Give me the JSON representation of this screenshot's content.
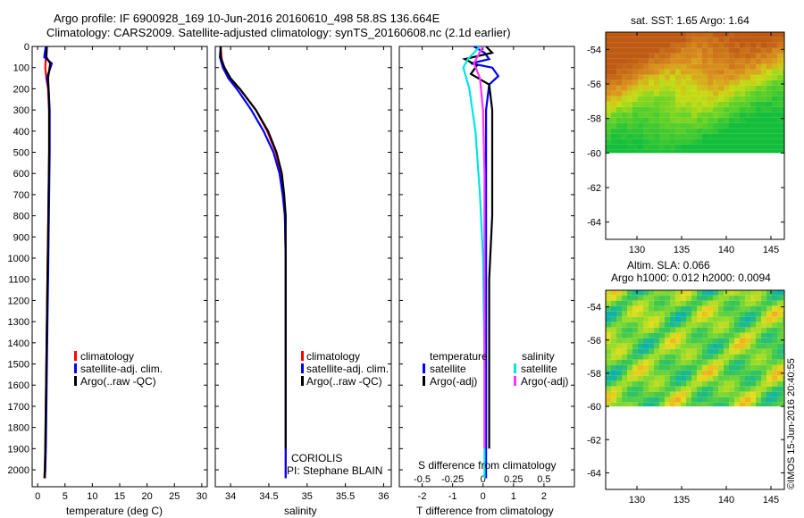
{
  "header": {
    "line1": "Argo profile: IF 6900928_169 10-Jun-2016 20160610_498 58.8S 136.664E",
    "line2": "Climatology: CARS2009. Satellite-adjusted climatology: synTS_20160608.nc (2.1d earlier)"
  },
  "colors": {
    "climatology": "#ff0000",
    "satellite": "#0000ff",
    "argo": "#000000",
    "sal_sat": "#00e5e5",
    "sal_argo": "#ff33ff"
  },
  "panels": {
    "temperature": {
      "xlabel": "temperature (deg C)",
      "legend": [
        "climatology",
        "satellite-adj. clim.",
        "Argo(..raw -QC)"
      ]
    },
    "salinity": {
      "xlabel": "salinity",
      "legend": [
        "climatology",
        "satellite-adj. clim.",
        "Argo(..raw -QC)"
      ],
      "note1": "CORIOLIS",
      "note2": "PI: Stephane BLAIN"
    },
    "difference": {
      "xlabel": "T difference from climatology",
      "toplabel": "S difference from climatology",
      "legend_t_head": "temperature",
      "legend_s_head": "salinity",
      "legend_t": [
        "satellite",
        "Argo(-adj)"
      ],
      "legend_s": [
        "satellite",
        "Argo(-adj)"
      ]
    },
    "sst_map": {
      "title": "sat. SST: 1.65 Argo: 1.64"
    },
    "sla_map": {
      "title1": "Altim. SLA: 0.066",
      "title2": "Argo h1000: 0.012 h2000: 0.0094"
    }
  },
  "stamp": "©IMOS 15-Jun-2016 20:40:55",
  "chart_data": [
    {
      "type": "line",
      "name": "temperature-profile",
      "xlabel": "temperature (deg C)",
      "ylabel": "",
      "xlim": [
        -1,
        31
      ],
      "ylim": [
        2080,
        0
      ],
      "xticks": [
        0,
        5,
        10,
        15,
        20,
        25,
        30
      ],
      "yticks": [
        0,
        100,
        200,
        300,
        400,
        500,
        600,
        700,
        800,
        900,
        1000,
        1100,
        1200,
        1300,
        1400,
        1500,
        1600,
        1700,
        1800,
        1900,
        2000
      ],
      "series": [
        {
          "name": "climatology",
          "x": [
            1.6,
            1.5,
            1.4,
            1.6,
            1.9,
            2.1,
            2.1,
            2.0,
            1.9,
            1.8,
            1.7,
            1.6,
            1.5,
            1.4,
            1.3,
            1.2
          ],
          "y": [
            0,
            50,
            100,
            150,
            200,
            300,
            500,
            700,
            900,
            1100,
            1300,
            1500,
            1700,
            1900,
            2000,
            2040
          ]
        },
        {
          "name": "satellite-adj. clim.",
          "x": [
            1.5,
            1.2,
            2.6,
            1.7,
            2.0,
            2.2,
            2.2,
            2.1,
            2.0,
            1.9,
            1.8,
            1.7,
            1.6,
            1.5,
            1.4,
            1.3
          ],
          "y": [
            0,
            50,
            80,
            150,
            200,
            300,
            500,
            700,
            900,
            1100,
            1300,
            1500,
            1700,
            1900,
            2000,
            2040
          ]
        },
        {
          "name": "Argo(..raw -QC)",
          "x": [
            1.7,
            1.6,
            2.3,
            1.9,
            2.0,
            2.1,
            2.1,
            2.0,
            1.9,
            1.8,
            1.7,
            1.6,
            1.5,
            1.4,
            1.3
          ],
          "y": [
            0,
            50,
            80,
            150,
            200,
            300,
            500,
            700,
            900,
            1100,
            1300,
            1500,
            1700,
            1900,
            2040
          ]
        }
      ]
    },
    {
      "type": "line",
      "name": "salinity-profile",
      "xlabel": "salinity",
      "ylabel": "",
      "xlim": [
        33.8,
        36.1
      ],
      "ylim": [
        2080,
        0
      ],
      "xticks": [
        34,
        34.5,
        35,
        35.5,
        36
      ],
      "xticklabels": [
        "34",
        "34.5",
        "35",
        "35.5",
        "36"
      ],
      "series": [
        {
          "name": "climatology",
          "x": [
            33.87,
            33.88,
            33.9,
            33.98,
            34.12,
            34.33,
            34.48,
            34.59,
            34.66,
            34.69,
            34.71,
            34.72,
            34.72,
            34.72,
            34.72
          ],
          "y": [
            0,
            50,
            100,
            150,
            200,
            300,
            400,
            500,
            600,
            700,
            800,
            1000,
            1300,
            1700,
            2040
          ]
        },
        {
          "name": "satellite-adj. clim.",
          "x": [
            33.87,
            33.86,
            33.9,
            33.97,
            34.08,
            34.27,
            34.43,
            34.56,
            34.64,
            34.68,
            34.71,
            34.72,
            34.72,
            34.72,
            34.72
          ],
          "y": [
            0,
            50,
            100,
            150,
            200,
            300,
            400,
            500,
            600,
            700,
            800,
            1000,
            1300,
            1700,
            2040
          ]
        },
        {
          "name": "Argo(..raw -QC)",
          "x": [
            33.87,
            33.87,
            33.92,
            34.0,
            34.12,
            34.33,
            34.49,
            34.6,
            34.67,
            34.7,
            34.72,
            34.72,
            34.72,
            34.72
          ],
          "y": [
            0,
            50,
            100,
            150,
            200,
            300,
            400,
            500,
            600,
            700,
            800,
            1000,
            1400,
            1900
          ]
        }
      ]
    },
    {
      "type": "line",
      "name": "difference-profile",
      "xlabel": "T difference from climatology",
      "x2label": "S difference from climatology",
      "xlim": [
        -2.75,
        3.0
      ],
      "ylim": [
        2080,
        0
      ],
      "xticks": [
        -2,
        -1,
        0,
        1,
        2
      ],
      "x2ticks": [
        -0.5,
        -0.25,
        0,
        0.25,
        0.5
      ],
      "series": [
        {
          "name": "temperature satellite",
          "x": [
            -0.3,
            0.05,
            0.2,
            -0.4,
            0.3,
            0.5,
            0.2,
            0.1,
            0.1,
            0.1,
            0.1,
            0.1,
            0.1,
            0.1
          ],
          "y": [
            0,
            30,
            60,
            80,
            100,
            140,
            180,
            300,
            500,
            800,
            1100,
            1400,
            1700,
            2040
          ]
        },
        {
          "name": "temperature Argo(-adj)",
          "x": [
            0.1,
            0.3,
            -0.6,
            -0.2,
            -0.4,
            0.2,
            0.3,
            0.3,
            0.3,
            0.2,
            0.2,
            0.2
          ],
          "y": [
            0,
            30,
            60,
            90,
            130,
            180,
            300,
            500,
            800,
            1100,
            1500,
            1900
          ]
        },
        {
          "name": "salinity satellite",
          "x": [
            -0.1,
            -0.5,
            -0.65,
            -0.45,
            -0.25,
            -0.1,
            0.0,
            0.05,
            0.05
          ],
          "y": [
            0,
            60,
            100,
            200,
            400,
            700,
            1000,
            1500,
            2040
          ]
        },
        {
          "name": "salinity Argo(-adj)",
          "x": [
            0.0,
            -0.3,
            -0.1,
            0.0,
            0.05,
            0.05,
            0.05
          ],
          "y": [
            0,
            80,
            150,
            300,
            600,
            1200,
            1900
          ]
        }
      ]
    },
    {
      "type": "heatmap",
      "name": "sst-map",
      "title": "sat. SST: 1.65 Argo: 1.64",
      "xlim": [
        126.5,
        146.5
      ],
      "ylim": [
        -65,
        -53
      ],
      "xticks": [
        130,
        135,
        140,
        145
      ],
      "yticks": [
        -54,
        -56,
        -58,
        -60,
        -62,
        -64
      ],
      "data_extent_lat": [
        -60,
        -53.2
      ]
    },
    {
      "type": "heatmap",
      "name": "sla-map",
      "title": "Altim. SLA: 0.066 / Argo h1000: 0.012 h2000: 0.0094",
      "xlim": [
        126.5,
        146.5
      ],
      "ylim": [
        -65,
        -53
      ],
      "xticks": [
        130,
        135,
        140,
        145
      ],
      "yticks": [
        -54,
        -56,
        -58,
        -60,
        -62,
        -64
      ],
      "data_extent_lat": [
        -60,
        -53.2
      ]
    }
  ]
}
